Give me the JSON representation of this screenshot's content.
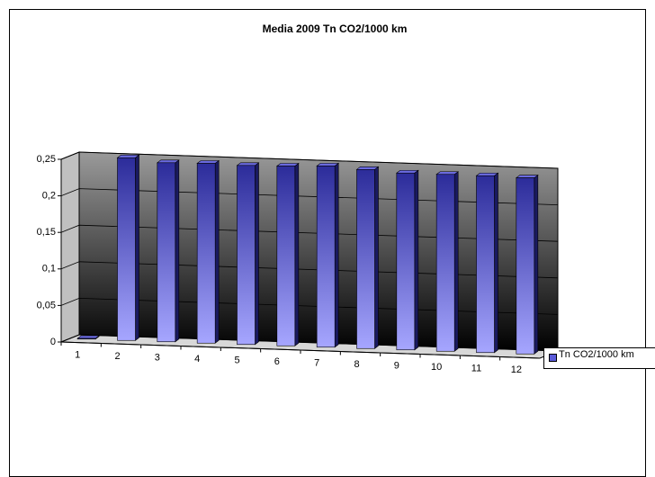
{
  "chart_data": {
    "type": "bar",
    "title": "Media 2009 Tn CO2/1000 km",
    "categories": [
      "1",
      "2",
      "3",
      "4",
      "5",
      "6",
      "7",
      "8",
      "9",
      "10",
      "11",
      "12"
    ],
    "series": [
      {
        "name": "Tn CO2/1000 km",
        "color": "#5a5ad8",
        "values": [
          0.001,
          0.25,
          0.245,
          0.246,
          0.245,
          0.246,
          0.248,
          0.245,
          0.242,
          0.242,
          0.242,
          0.241
        ]
      }
    ],
    "ylim": [
      0,
      0.25
    ],
    "yticks": [
      0,
      {
        "value": 0.05,
        "label": "0,05"
      },
      {
        "value": 0.1,
        "label": "0,1"
      },
      {
        "value": 0.15,
        "label": "0,15"
      },
      {
        "value": 0.2,
        "label": "0,2"
      },
      {
        "value": 0.25,
        "label": "0,25"
      }
    ],
    "grid": true,
    "legend": "right"
  }
}
